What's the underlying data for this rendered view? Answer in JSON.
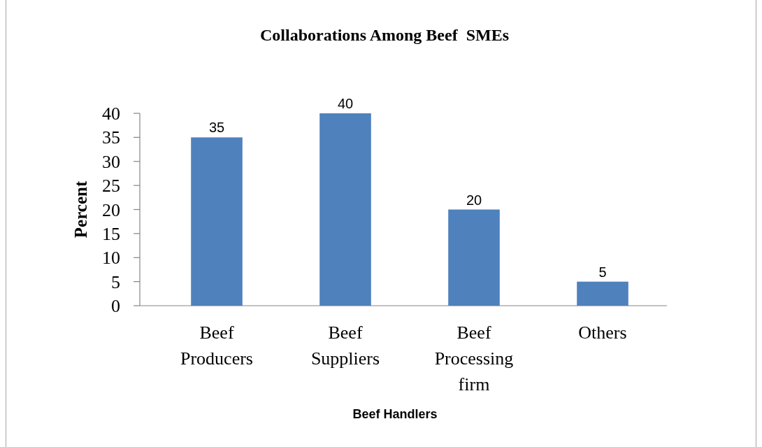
{
  "chart_data": {
    "type": "bar",
    "title": "Collaborations Among Beef  SMEs",
    "xlabel": "Beef Handlers",
    "ylabel": "Percent",
    "categories": [
      "Beef Producers",
      "Beef Suppliers",
      "Beef Processing firm",
      "Others"
    ],
    "values": [
      35,
      40,
      20,
      5
    ],
    "color": "#4f81bd",
    "ylim": [
      0,
      40
    ],
    "yticks": [
      0,
      5,
      10,
      15,
      20,
      25,
      30,
      35,
      40
    ],
    "data_labels": true
  }
}
